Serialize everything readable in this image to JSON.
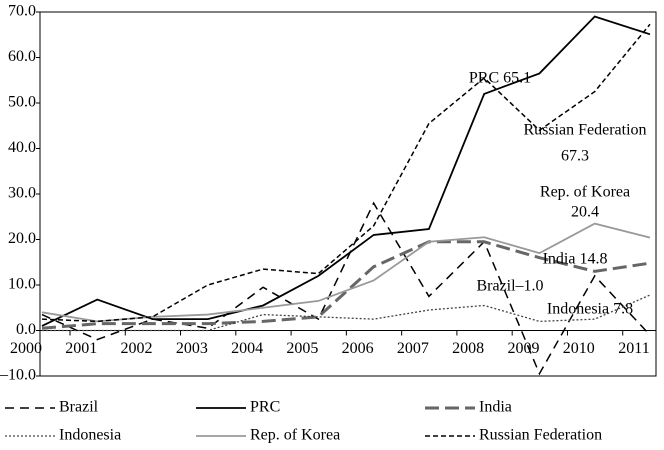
{
  "chart_data": {
    "type": "line",
    "categories": [
      "2000",
      "2001",
      "2002",
      "2003",
      "2004",
      "2005",
      "2006",
      "2007",
      "2008",
      "2009",
      "2010",
      "2011"
    ],
    "series": [
      {
        "name": "Brazil",
        "color": "#000000",
        "width": 1.5,
        "dash": "9,6",
        "values": [
          3.5,
          -2,
          2.5,
          0.5,
          9.5,
          2.5,
          28,
          7.5,
          19.5,
          -9.5,
          12,
          -1.0
        ]
      },
      {
        "name": "PRC",
        "color": "#000000",
        "width": 1.8,
        "dash": "none",
        "values": [
          1,
          6.8,
          2.5,
          2.5,
          5.5,
          12,
          21,
          22.3,
          52,
          56.5,
          69,
          65.1
        ]
      },
      {
        "name": "India",
        "color": "#666666",
        "width": 3,
        "dash": "14,6",
        "values": [
          0.5,
          1.5,
          1.5,
          1.5,
          2,
          3,
          14,
          19.5,
          19.5,
          16,
          13,
          14.8
        ]
      },
      {
        "name": "Indonesia",
        "color": "#444444",
        "width": 1.3,
        "dash": "2,2",
        "values": [
          0,
          0,
          0,
          0,
          3.5,
          3,
          2.5,
          4.5,
          5.5,
          2,
          2.5,
          7.8
        ]
      },
      {
        "name": "Rep. of Korea",
        "color": "#999999",
        "width": 1.8,
        "dash": "none",
        "values": [
          4,
          2,
          3,
          3.5,
          5,
          6.5,
          11,
          19.5,
          20.5,
          17,
          23.5,
          20.4
        ]
      },
      {
        "name": "Russian Federation",
        "color": "#000000",
        "width": 1.5,
        "dash": "5,3",
        "values": [
          2.5,
          2,
          3,
          10,
          13.5,
          12.5,
          23,
          45.5,
          55.5,
          44,
          52.5,
          67.3
        ]
      }
    ],
    "annotations": [
      "PRC 65.1",
      "Russian Federation",
      "67.3",
      "Rep. of Korea",
      "20.4",
      "India 14.8",
      "Brazil–1.0",
      "Indonesia 7.8"
    ],
    "ylim": [
      -10,
      70
    ],
    "yticks": [
      {
        "value": -10,
        "label": "–10.0"
      },
      {
        "value": 0,
        "label": "0.0"
      },
      {
        "value": 10,
        "label": "10.0"
      },
      {
        "value": 20,
        "label": "20.0"
      },
      {
        "value": 30,
        "label": "30.0"
      },
      {
        "value": 40,
        "label": "40.0"
      },
      {
        "value": 50,
        "label": "50.0"
      },
      {
        "value": 60,
        "label": "60.0"
      },
      {
        "value": 70,
        "label": "70.0"
      }
    ],
    "grid": false
  }
}
